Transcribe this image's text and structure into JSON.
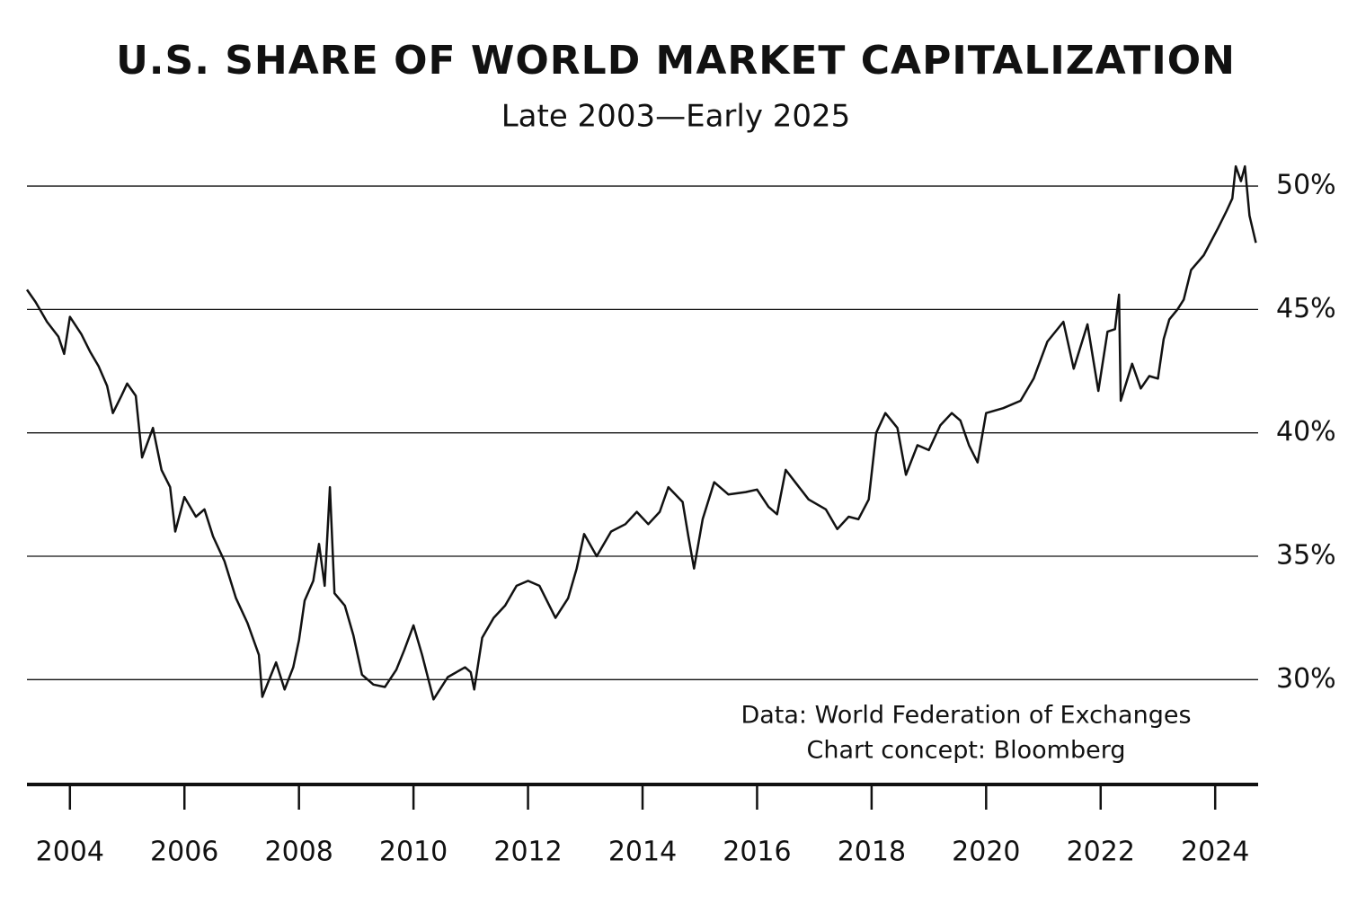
{
  "chart_data": {
    "type": "line",
    "title": "U.S. SHARE OF WORLD MARKET CAPITALIZATION",
    "subtitle": "Late 2003—Early 2025",
    "annotations": [
      "Data: World Federation of Exchanges",
      "Chart concept: Bloomberg"
    ],
    "color": "#111111",
    "grid": true,
    "xlim": [
      2003.25,
      2024.75
    ],
    "xticks": [
      2004,
      2006,
      2008,
      2010,
      2012,
      2014,
      2016,
      2018,
      2020,
      2022,
      2024
    ],
    "ylim": [
      25.75,
      51.35
    ],
    "yticks": [
      {
        "value": 30,
        "label": "30%"
      },
      {
        "value": 35,
        "label": "35%"
      },
      {
        "value": 40,
        "label": "40%"
      },
      {
        "value": 45,
        "label": "45%"
      },
      {
        "value": 50,
        "label": "50%"
      }
    ],
    "x": [
      2003.25,
      2003.4,
      2003.6,
      2003.8,
      2003.9,
      2004.0,
      2004.2,
      2004.35,
      2004.5,
      2004.65,
      2004.75,
      2004.9,
      2005.0,
      2005.15,
      2005.26,
      2005.45,
      2005.6,
      2005.75,
      2005.84,
      2006.0,
      2006.2,
      2006.35,
      2006.5,
      2006.7,
      2006.9,
      2007.1,
      2007.3,
      2007.36,
      2007.6,
      2007.75,
      2007.9,
      2008.0,
      2008.1,
      2008.25,
      2008.35,
      2008.45,
      2008.54,
      2008.62,
      2008.8,
      2008.95,
      2009.1,
      2009.3,
      2009.5,
      2009.7,
      2009.84,
      2010.0,
      2010.15,
      2010.35,
      2010.6,
      2010.9,
      2011.0,
      2011.06,
      2011.2,
      2011.4,
      2011.6,
      2011.8,
      2012.0,
      2012.2,
      2012.48,
      2012.7,
      2012.85,
      2012.98,
      2013.2,
      2013.45,
      2013.7,
      2013.9,
      2014.1,
      2014.3,
      2014.45,
      2014.7,
      2014.8,
      2014.9,
      2015.05,
      2015.25,
      2015.5,
      2015.8,
      2016.0,
      2016.2,
      2016.35,
      2016.5,
      2016.7,
      2016.9,
      2017.2,
      2017.4,
      2017.6,
      2017.77,
      2017.95,
      2018.08,
      2018.24,
      2018.45,
      2018.6,
      2018.8,
      2019.0,
      2019.2,
      2019.4,
      2019.55,
      2019.7,
      2019.85,
      2020.0,
      2020.3,
      2020.6,
      2020.83,
      2021.07,
      2021.35,
      2021.53,
      2021.77,
      2021.96,
      2022.12,
      2022.25,
      2022.32,
      2022.35,
      2022.55,
      2022.7,
      2022.85,
      2023.0,
      2023.1,
      2023.2,
      2023.34,
      2023.45,
      2023.58,
      2023.8,
      2024.05,
      2024.2,
      2024.3,
      2024.36,
      2024.45,
      2024.52,
      2024.6,
      2024.71
    ],
    "values": [
      45.8,
      45.3,
      44.5,
      43.9,
      43.2,
      44.7,
      44.0,
      43.3,
      42.7,
      41.9,
      40.8,
      41.5,
      42.0,
      41.5,
      39.0,
      40.2,
      38.5,
      37.8,
      36.0,
      37.4,
      36.6,
      36.9,
      35.8,
      34.8,
      33.3,
      32.3,
      31.0,
      29.3,
      30.7,
      29.6,
      30.5,
      31.6,
      33.2,
      34.0,
      35.5,
      33.8,
      37.8,
      33.5,
      33.0,
      31.8,
      30.2,
      29.8,
      29.7,
      30.4,
      31.2,
      32.2,
      31.0,
      29.2,
      30.1,
      30.5,
      30.3,
      29.6,
      31.7,
      32.5,
      33.0,
      33.8,
      34.0,
      33.8,
      32.5,
      33.3,
      34.5,
      35.9,
      35.0,
      36.0,
      36.3,
      36.8,
      36.3,
      36.8,
      37.8,
      37.2,
      35.8,
      34.5,
      36.5,
      38.0,
      37.5,
      37.6,
      37.7,
      37.0,
      36.7,
      38.5,
      37.9,
      37.3,
      36.9,
      36.1,
      36.6,
      36.5,
      37.3,
      40.0,
      40.8,
      40.2,
      38.3,
      39.5,
      39.3,
      40.3,
      40.8,
      40.5,
      39.5,
      38.8,
      40.8,
      41.0,
      41.3,
      42.2,
      43.7,
      44.5,
      42.6,
      44.4,
      41.7,
      44.1,
      44.2,
      45.6,
      41.3,
      42.8,
      41.8,
      42.3,
      42.2,
      43.8,
      44.6,
      45.0,
      45.4,
      46.6,
      47.2,
      48.3,
      49.0,
      49.5,
      50.8,
      50.2,
      50.8,
      48.8,
      47.7
    ]
  }
}
